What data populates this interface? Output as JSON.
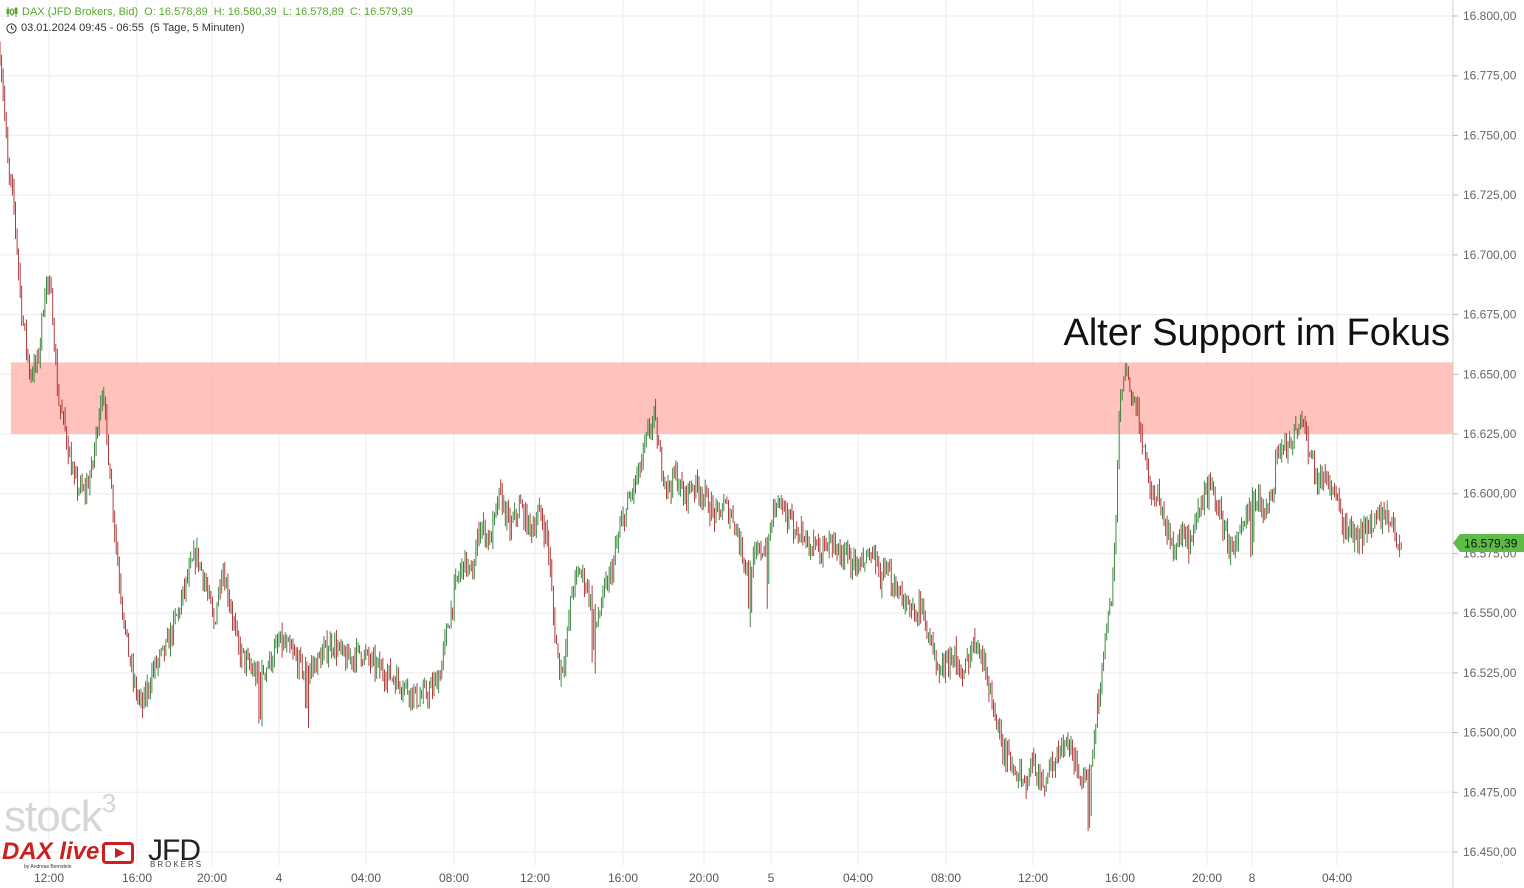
{
  "header": {
    "symbol": "DAX (JFD Brokers, Bid)",
    "open": "O: 16.578,89",
    "high": "H: 16.580,39",
    "low": "L: 16.578,89",
    "close": "C: 16.579,39",
    "range": "03.01.2024 09:45 - 06:55",
    "period": "(5 Tage, 5 Minuten)"
  },
  "annotation": "Alter Support im Fokus",
  "watermark": "stock",
  "watermark_sup": "3",
  "logos": {
    "daxlive": "DAX live",
    "daxlive_sub": "by Andreas Bernstein",
    "jfd": "JFD",
    "jfd_sub": "BROKERS"
  },
  "colors": {
    "up": "#2e7d32",
    "down": "#a52a2a",
    "zone_fill": "#ffb3ad",
    "last_price_bg": "#5dbb46",
    "grid": "#ececec"
  },
  "chart_data": {
    "type": "candlestick",
    "timeframe": "5 Minuten",
    "ylim": [
      16437.5,
      16812.5
    ],
    "y_ticks": [
      {
        "v": 16800,
        "label": "16.800,00"
      },
      {
        "v": 16775,
        "label": "16.775,00"
      },
      {
        "v": 16750,
        "label": "16.750,00"
      },
      {
        "v": 16725,
        "label": "16.725,00"
      },
      {
        "v": 16700,
        "label": "16.700,00"
      },
      {
        "v": 16675,
        "label": "16.675,00"
      },
      {
        "v": 16650,
        "label": "16.650,00"
      },
      {
        "v": 16625,
        "label": "16.625,00"
      },
      {
        "v": 16600,
        "label": "16.600,00"
      },
      {
        "v": 16575,
        "label": "16.575,00"
      },
      {
        "v": 16550,
        "label": "16.550,00"
      },
      {
        "v": 16525,
        "label": "16.525,00"
      },
      {
        "v": 16500,
        "label": "16.500,00"
      },
      {
        "v": 16475,
        "label": "16.475,00"
      },
      {
        "v": 16450,
        "label": "16.450,00"
      }
    ],
    "x_ticks": [
      "12:00",
      "16:00",
      "20:00",
      "4",
      "04:00",
      "08:00",
      "12:00",
      "16:00",
      "20:00",
      "5",
      "04:00",
      "08:00",
      "12:00",
      "16:00",
      "20:00",
      "8",
      "04:00"
    ],
    "last_price": {
      "value": 16579.39,
      "label": "16.579,39"
    },
    "support_zone": {
      "low": 16625,
      "high": 16655
    },
    "path": [
      [
        0,
        16785
      ],
      [
        3,
        16770
      ],
      [
        8,
        16735
      ],
      [
        14,
        16720
      ],
      [
        22,
        16675
      ],
      [
        30,
        16650
      ],
      [
        38,
        16655
      ],
      [
        46,
        16690
      ],
      [
        52,
        16680
      ],
      [
        58,
        16640
      ],
      [
        66,
        16625
      ],
      [
        74,
        16605
      ],
      [
        84,
        16600
      ],
      [
        92,
        16610
      ],
      [
        102,
        16645
      ],
      [
        110,
        16610
      ],
      [
        118,
        16570
      ],
      [
        126,
        16540
      ],
      [
        134,
        16520
      ],
      [
        142,
        16510
      ],
      [
        152,
        16525
      ],
      [
        166,
        16535
      ],
      [
        178,
        16550
      ],
      [
        188,
        16565
      ],
      [
        196,
        16575
      ],
      [
        204,
        16565
      ],
      [
        214,
        16545
      ],
      [
        222,
        16570
      ],
      [
        230,
        16555
      ],
      [
        238,
        16535
      ],
      [
        248,
        16528
      ],
      [
        258,
        16523
      ],
      [
        270,
        16530
      ],
      [
        280,
        16538
      ],
      [
        292,
        16533
      ],
      [
        306,
        16525
      ],
      [
        318,
        16530
      ],
      [
        332,
        16538
      ],
      [
        346,
        16530
      ],
      [
        360,
        16534
      ],
      [
        374,
        16528
      ],
      [
        390,
        16524
      ],
      [
        404,
        16520
      ],
      [
        418,
        16514
      ],
      [
        432,
        16518
      ],
      [
        440,
        16525
      ],
      [
        448,
        16545
      ],
      [
        456,
        16562
      ],
      [
        464,
        16572
      ],
      [
        472,
        16565
      ],
      [
        480,
        16588
      ],
      [
        490,
        16580
      ],
      [
        500,
        16600
      ],
      [
        510,
        16585
      ],
      [
        520,
        16595
      ],
      [
        530,
        16585
      ],
      [
        540,
        16592
      ],
      [
        548,
        16580
      ],
      [
        554,
        16545
      ],
      [
        560,
        16525
      ],
      [
        566,
        16535
      ],
      [
        572,
        16560
      ],
      [
        580,
        16568
      ],
      [
        588,
        16560
      ],
      [
        596,
        16545
      ],
      [
        604,
        16558
      ],
      [
        612,
        16568
      ],
      [
        620,
        16585
      ],
      [
        630,
        16598
      ],
      [
        640,
        16610
      ],
      [
        648,
        16625
      ],
      [
        654,
        16632
      ],
      [
        660,
        16615
      ],
      [
        668,
        16602
      ],
      [
        676,
        16608
      ],
      [
        684,
        16598
      ],
      [
        692,
        16604
      ],
      [
        700,
        16602
      ],
      [
        708,
        16596
      ],
      [
        716,
        16590
      ],
      [
        724,
        16595
      ],
      [
        734,
        16590
      ],
      [
        742,
        16575
      ],
      [
        750,
        16568
      ],
      [
        758,
        16575
      ],
      [
        766,
        16578
      ],
      [
        774,
        16595
      ],
      [
        782,
        16592
      ],
      [
        790,
        16588
      ],
      [
        800,
        16585
      ],
      [
        810,
        16578
      ],
      [
        820,
        16575
      ],
      [
        830,
        16580
      ],
      [
        840,
        16575
      ],
      [
        850,
        16572
      ],
      [
        860,
        16568
      ],
      [
        870,
        16575
      ],
      [
        880,
        16565
      ],
      [
        890,
        16565
      ],
      [
        900,
        16560
      ],
      [
        910,
        16550
      ],
      [
        920,
        16553
      ],
      [
        930,
        16540
      ],
      [
        938,
        16525
      ],
      [
        946,
        16528
      ],
      [
        954,
        16535
      ],
      [
        962,
        16520
      ],
      [
        970,
        16535
      ],
      [
        978,
        16540
      ],
      [
        986,
        16525
      ],
      [
        994,
        16510
      ],
      [
        1002,
        16492
      ],
      [
        1010,
        16488
      ],
      [
        1018,
        16484
      ],
      [
        1026,
        16478
      ],
      [
        1034,
        16488
      ],
      [
        1042,
        16478
      ],
      [
        1050,
        16485
      ],
      [
        1058,
        16490
      ],
      [
        1066,
        16495
      ],
      [
        1074,
        16490
      ],
      [
        1082,
        16480
      ],
      [
        1088,
        16475
      ],
      [
        1094,
        16500
      ],
      [
        1100,
        16520
      ],
      [
        1106,
        16540
      ],
      [
        1112,
        16560
      ],
      [
        1116,
        16590
      ],
      [
        1120,
        16640
      ],
      [
        1126,
        16650
      ],
      [
        1132,
        16640
      ],
      [
        1138,
        16632
      ],
      [
        1144,
        16620
      ],
      [
        1150,
        16602
      ],
      [
        1158,
        16600
      ],
      [
        1166,
        16585
      ],
      [
        1174,
        16578
      ],
      [
        1182,
        16583
      ],
      [
        1190,
        16577
      ],
      [
        1198,
        16590
      ],
      [
        1206,
        16602
      ],
      [
        1214,
        16600
      ],
      [
        1222,
        16588
      ],
      [
        1230,
        16577
      ],
      [
        1238,
        16580
      ],
      [
        1246,
        16588
      ],
      [
        1254,
        16600
      ],
      [
        1262,
        16595
      ],
      [
        1270,
        16595
      ],
      [
        1278,
        16618
      ],
      [
        1286,
        16620
      ],
      [
        1294,
        16625
      ],
      [
        1302,
        16632
      ],
      [
        1310,
        16618
      ],
      [
        1318,
        16605
      ],
      [
        1326,
        16608
      ],
      [
        1334,
        16600
      ],
      [
        1342,
        16588
      ],
      [
        1350,
        16585
      ],
      [
        1358,
        16580
      ],
      [
        1366,
        16585
      ],
      [
        1374,
        16590
      ],
      [
        1382,
        16590
      ],
      [
        1390,
        16588
      ],
      [
        1398,
        16580
      ],
      [
        1402,
        16579.39
      ]
    ]
  }
}
